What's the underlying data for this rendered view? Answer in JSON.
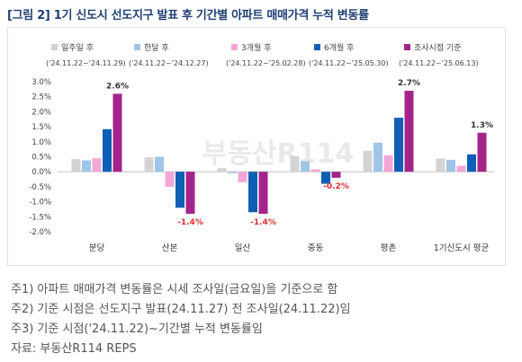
{
  "title": "[그림 2] 1기 신도시 선도지구 발표 후 기간별 아파트 매매가격 누적 변동률",
  "chart_data": {
    "type": "bar",
    "categories": [
      "분당",
      "산본",
      "일산",
      "중동",
      "평촌",
      "1기신도시 평균"
    ],
    "ylim": [
      -2.0,
      3.0
    ],
    "yticks": [
      "3.0%",
      "2.5%",
      "2.0%",
      "1.5%",
      "1.0%",
      "0.5%",
      "0.0%",
      "-0.5%",
      "-1.0%",
      "-1.5%",
      "-2.0%"
    ],
    "series": [
      {
        "name": "일주일 후",
        "period": "('24.11.22~'24.11.29)",
        "color": "#d3d3d3",
        "values": [
          0.42,
          0.48,
          0.12,
          0.52,
          0.7,
          0.44
        ]
      },
      {
        "name": "한달 후",
        "period": "('24.11.22~'24.12.27)",
        "color": "#9fc5e8",
        "values": [
          0.38,
          0.5,
          -0.05,
          0.35,
          0.97,
          0.4
        ]
      },
      {
        "name": "3개월 후",
        "period": "('24.11.22~'25.02.28)",
        "color": "#f4a6d7",
        "values": [
          0.45,
          -0.5,
          -0.35,
          0.08,
          0.55,
          0.2
        ]
      },
      {
        "name": "6개월 후",
        "period": "('24.11.22~'25.05.30)",
        "color": "#0f5fb5",
        "values": [
          1.42,
          -1.2,
          -1.35,
          -0.4,
          1.8,
          0.58
        ]
      },
      {
        "name": "조사시점 기준",
        "period": "('24.11.22~'25.06.13)",
        "color": "#a3248a",
        "values": [
          2.6,
          -1.4,
          -1.4,
          -0.2,
          2.7,
          1.3
        ]
      }
    ],
    "data_labels": [
      {
        "category_index": 0,
        "series_index": 4,
        "text": "2.6%",
        "color": "#333333"
      },
      {
        "category_index": 1,
        "series_index": 4,
        "text": "-1.4%",
        "color": "#e03030"
      },
      {
        "category_index": 2,
        "series_index": 4,
        "text": "-1.4%",
        "color": "#e03030"
      },
      {
        "category_index": 3,
        "series_index": 4,
        "text": "-0.2%",
        "color": "#e03030"
      },
      {
        "category_index": 4,
        "series_index": 4,
        "text": "2.7%",
        "color": "#333333"
      },
      {
        "category_index": 5,
        "series_index": 4,
        "text": "1.3%",
        "color": "#333333"
      }
    ],
    "grid": false,
    "legend_position": "top"
  },
  "watermark_text": "부동산R114",
  "notes": [
    "주1) 아파트 매매가격 변동률은 시세 조사일(금요일)을 기준으로 함",
    "주2) 기준 시점은 선도지구 발표(24.11.27) 전 조사일(24.11.22)임",
    "주3) 기준 시점('24.11.22)~기간별 누적 변동률임",
    "자료: 부동산R114 REPS"
  ]
}
